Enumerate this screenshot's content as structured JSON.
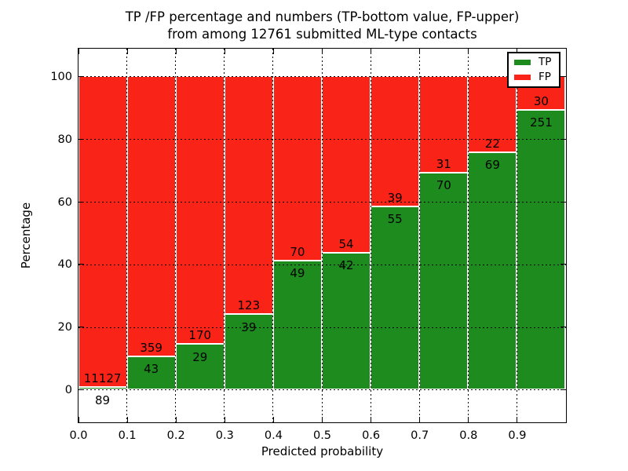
{
  "figure": {
    "title_line1": "TP /FP percentage and numbers (TP-bottom value, FP-upper)",
    "title_line2": "from among 12761 submitted ML-type contacts"
  },
  "chart_data": {
    "type": "bar",
    "stacked": true,
    "normalized_to_percent": true,
    "title": "TP /FP percentage and numbers (TP-bottom value, FP-upper)\nfrom among 12761 submitted ML-type contacts",
    "xlabel": "Predicted probability",
    "ylabel": "Percentage",
    "total_contacts": 12761,
    "x_bin_edges": [
      0.0,
      0.1,
      0.2,
      0.3,
      0.4,
      0.5,
      0.6,
      0.7,
      0.8,
      0.9,
      1.0
    ],
    "x_tick_labels": [
      "0.0",
      "0.1",
      "0.2",
      "0.3",
      "0.4",
      "0.5",
      "0.6",
      "0.7",
      "0.8",
      "0.9"
    ],
    "y_ticks": [
      0,
      20,
      40,
      60,
      80,
      100
    ],
    "y_tick_labels": [
      "0",
      "20",
      "40",
      "60",
      "80",
      "100"
    ],
    "ylim": [
      -10.3,
      109.0
    ],
    "grid": "dotted",
    "legend_position": "upper right",
    "series": [
      {
        "name": "TP",
        "color": "#1e8b1e",
        "counts": [
          89,
          43,
          29,
          39,
          49,
          42,
          55,
          70,
          69,
          251
        ],
        "percent": [
          0.79,
          10.7,
          14.57,
          24.07,
          41.18,
          43.75,
          58.51,
          69.31,
          75.82,
          89.32
        ]
      },
      {
        "name": "FP",
        "color": "#fa2318",
        "counts": [
          11127,
          359,
          170,
          123,
          70,
          54,
          39,
          31,
          22,
          30
        ],
        "percent": [
          99.21,
          89.3,
          85.43,
          75.93,
          58.82,
          56.25,
          41.49,
          30.69,
          24.18,
          10.68
        ]
      }
    ]
  }
}
